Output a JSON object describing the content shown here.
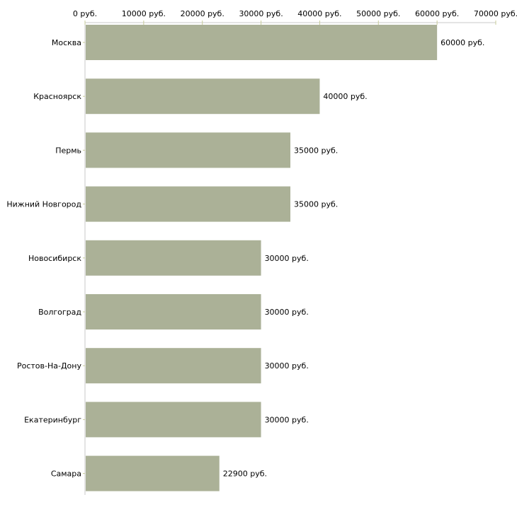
{
  "chart_data": {
    "type": "bar",
    "orientation": "horizontal",
    "categories": [
      "Москва",
      "Красноярск",
      "Пермь",
      "Нижний Новгород",
      "Новосибирск",
      "Волгоград",
      "Ростов-На-Дону",
      "Екатеринбург",
      "Самара"
    ],
    "values": [
      60000,
      40000,
      35000,
      35000,
      30000,
      30000,
      30000,
      30000,
      22900
    ],
    "value_labels": [
      "60000 руб.",
      "40000 руб.",
      "35000 руб.",
      "35000 руб.",
      "30000 руб.",
      "30000 руб.",
      "30000 руб.",
      "30000 руб.",
      "22900 руб."
    ],
    "x_ticks": [
      0,
      10000,
      20000,
      30000,
      40000,
      50000,
      60000,
      70000
    ],
    "x_tick_labels": [
      "0 руб.",
      "10000 руб.",
      "20000 руб.",
      "30000 руб.",
      "40000 руб.",
      "50000 руб.",
      "60000 руб.",
      "70000 руб."
    ],
    "xlim": [
      0,
      70000
    ],
    "x_axis_position": "top",
    "grid": false,
    "title": "",
    "xlabel": "",
    "ylabel": "",
    "bar_color": "#abb197",
    "axis_color": "#c8c8c8",
    "tick_color": "#c8cc9a"
  }
}
